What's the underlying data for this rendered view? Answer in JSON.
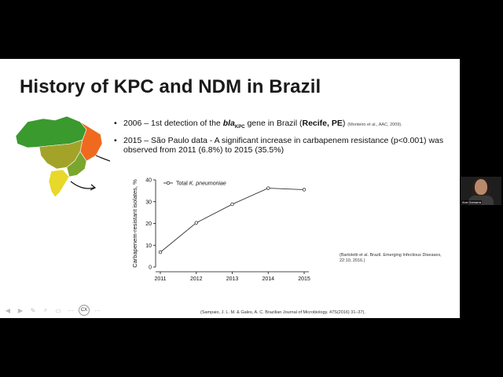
{
  "slide": {
    "title": "History of KPC and NDM in Brazil",
    "bullets": [
      {
        "dot": "•",
        "pre": "2006 – 1st detection of the ",
        "gene": "bla",
        "gene_sub": "KPC",
        "mid": " gene in Brazil (",
        "bold": "Recife, PE",
        "post": ") ",
        "cite": "(Monteiro et al., AAC, 2009)."
      },
      {
        "dot": "•",
        "text": "2015 – São Paulo data - A significant increase in carbapenem resistance (p<0.001) was observed from 2011 (6.8%) to 2015 (35.5%)"
      }
    ],
    "cite_right": "(Bartoletti et al. Brazil. Emerging Infectious Diseases, 22:10, 2016.)",
    "cite_bottom": "(Sampaio, J. L. M. & Gales, A. C. Brazilian Journal of Microbiology. 47S(2016) 31–37).",
    "toolbar": {
      "cx_label": "CX"
    }
  },
  "colors": {
    "map_green": "#3a9a2e",
    "map_orange": "#ef6a1f",
    "map_yellow": "#e8d82a",
    "map_olive": "#a3a329"
  },
  "video": {
    "name": "Ana Gamarra"
  },
  "chart_data": {
    "type": "line",
    "x": [
      2011,
      2012,
      2013,
      2014,
      2015
    ],
    "series": [
      {
        "name": "Total K. pneumoniae",
        "values": [
          6.8,
          20.3,
          28.8,
          36.2,
          35.5
        ]
      }
    ],
    "ylabel": "Carbapenem-resistant isolates, %",
    "xlabel": "",
    "ylim": [
      0,
      40
    ],
    "yticks": [
      0,
      10,
      20,
      30,
      40
    ],
    "legend_label_prefix": "Total ",
    "legend_label_italic": "K. pneumoniae",
    "grid": false,
    "legend": "top-left"
  }
}
